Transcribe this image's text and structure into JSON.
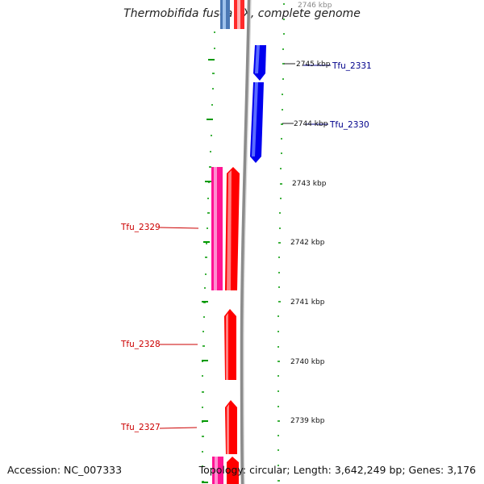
{
  "title": "Thermobifida fusca YX, complete genome",
  "footer": {
    "accession": "Accession: NC_007333",
    "summary": "Topology: circular; Length: 3,642,249 bp; Genes: 3,176"
  },
  "colors": {
    "forward_gene": "#0000ee",
    "reverse_gene": "#ff0000",
    "reverse_cds": "#ff1493",
    "faded_forward": "#4a78b5",
    "ruler": "#009900",
    "backbone": "#999999",
    "forward_label": "#00008b",
    "reverse_label": "#cc0000"
  },
  "ruler_labels": [
    {
      "kbp": 2746,
      "text": "2746 kbp"
    },
    {
      "kbp": 2745,
      "text": "2745 kbp"
    },
    {
      "kbp": 2744,
      "text": "2744 kbp"
    },
    {
      "kbp": 2743,
      "text": "2743 kbp"
    },
    {
      "kbp": 2742,
      "text": "2742 kbp"
    },
    {
      "kbp": 2741,
      "text": "2741 kbp"
    },
    {
      "kbp": 2740,
      "text": "2740 kbp"
    },
    {
      "kbp": 2739,
      "text": "2739 kbp"
    }
  ],
  "gene_labels": [
    {
      "text": "Tfu_2331",
      "strand": "forward"
    },
    {
      "text": "Tfu_2330",
      "strand": "forward"
    },
    {
      "text": "Tfu_2329",
      "strand": "reverse"
    },
    {
      "text": "Tfu_2328",
      "strand": "reverse"
    },
    {
      "text": "Tfu_2327",
      "strand": "reverse"
    }
  ]
}
